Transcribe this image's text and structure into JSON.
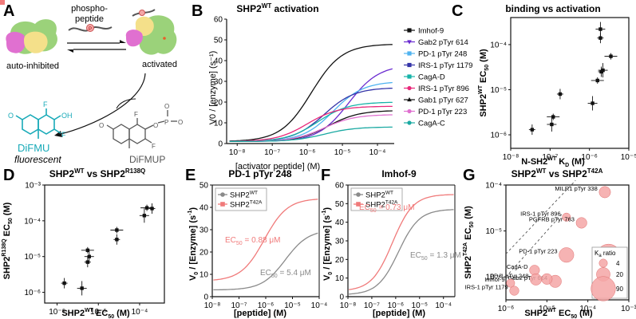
{
  "colors": {
    "black": "#111111",
    "purple": "#6a2bd0",
    "skyblue": "#4fb3f0",
    "indigo": "#3535a8",
    "teal": "#16b3a8",
    "magenta": "#e8287a",
    "pink": "#e070d0",
    "cyan": "#1aa9a2",
    "grey": "#8a8a8a",
    "salmon": "#f07a7a",
    "bubble": "#f4a6a6",
    "green": "#9bd27a",
    "yellow": "#f4e08a",
    "difmu": "#18aab8"
  },
  "panel_A": {
    "letter": "A",
    "label_phospho_1": "phospho-",
    "label_phospho_2": "peptide",
    "label_autoinhibited": "auto-inhibited",
    "label_activated": "activated",
    "label_difmu": "DiFMU",
    "label_fluorescent": "fluorescent",
    "label_difmup": "DiFMUP",
    "p_marker": "P",
    "atom_F": "F",
    "atom_OH": "OH",
    "atom_O": "O",
    "atom_P": "P"
  },
  "chart_data": [
    {
      "panel": "B",
      "type": "line",
      "title": "SHP2",
      "title_sup": "WT",
      "title_rest": " activation",
      "xlabel": "[activator peptide] (M)",
      "ylabel": "V0 / [enzyme] (s⁻¹)",
      "xscale": "log",
      "xlim": [
        5e-09,
        0.0003
      ],
      "ylim": [
        0,
        60
      ],
      "yticks": [
        0,
        10,
        20,
        30,
        40,
        50,
        60
      ],
      "xticks": [
        "10⁻⁸",
        "10⁻⁷",
        "10⁻⁶",
        "10⁻⁵",
        "10⁻⁴"
      ],
      "series": [
        {
          "name": "Imhof-9",
          "color": "black",
          "marker": "square",
          "baseline": 1,
          "top": 48,
          "ec50": 1.3e-06
        },
        {
          "name": "Gab2 pTyr 614",
          "color": "purple",
          "marker": "tri-down",
          "baseline": 1,
          "top": 38,
          "ec50": 1.5e-05
        },
        {
          "name": "PD-1 pTyr 248",
          "color": "skyblue",
          "marker": "square",
          "baseline": 1,
          "top": 30,
          "ec50": 5.4e-06
        },
        {
          "name": "IRS-1 pTyr 1179",
          "color": "indigo",
          "marker": "square",
          "baseline": 1,
          "top": 27,
          "ec50": 3e-06
        },
        {
          "name": "CagA-D",
          "color": "teal",
          "marker": "square",
          "baseline": 1,
          "top": 20,
          "ec50": 2e-06
        },
        {
          "name": "IRS-1 pTyr 896",
          "color": "magenta",
          "marker": "circle",
          "baseline": 1,
          "top": 18,
          "ec50": 1e-06
        },
        {
          "name": "Gab1 pTyr 627",
          "color": "black",
          "marker": "tri-up",
          "baseline": 1,
          "top": 16,
          "ec50": 4e-06
        },
        {
          "name": "PD-1 pTyr 223",
          "color": "pink",
          "marker": "circle",
          "baseline": 1,
          "top": 14,
          "ec50": 3e-06
        },
        {
          "name": "CagA-C",
          "color": "cyan",
          "marker": "circle",
          "baseline": 1,
          "top": 8,
          "ec50": 3e-06
        }
      ]
    },
    {
      "panel": "C",
      "type": "scatter",
      "title": "binding vs activation",
      "xlabel_pre": "N-SH2",
      "xlabel_sup": "WT",
      "xlabel_post": " K",
      "xlabel_sub": "D",
      "xlabel_unit": " (M)",
      "ylabel_pre": "SHP2",
      "ylabel_sup": "WT",
      "ylabel_post": " EC",
      "ylabel_sub": "50",
      "ylabel_unit": " (M)",
      "xlim_exp": [
        -8,
        -5
      ],
      "ylim_exp": [
        -6.3,
        -3.4
      ],
      "xticks": [
        "10⁻⁸",
        "10⁻⁷",
        "10⁻⁶",
        "10⁻⁵"
      ],
      "yticks": [
        "10⁻⁶",
        "10⁻⁵",
        "10⁻⁴"
      ],
      "points": [
        {
          "x": 3.5e-08,
          "y": 1.3e-06
        },
        {
          "x": 1.1e-07,
          "y": 1.7e-06
        },
        {
          "x": 1.2e-07,
          "y": 2.5e-06
        },
        {
          "x": 1.8e-07,
          "y": 8e-06
        },
        {
          "x": 1.2e-06,
          "y": 5e-06
        },
        {
          "x": 1.6e-06,
          "y": 1.6e-05
        },
        {
          "x": 2e-06,
          "y": 2.5e-05
        },
        {
          "x": 2.2e-06,
          "y": 2.7e-05
        },
        {
          "x": 3.5e-06,
          "y": 5.5e-05
        },
        {
          "x": 1.9e-06,
          "y": 0.00014
        },
        {
          "x": 1.9e-06,
          "y": 0.00022
        }
      ]
    },
    {
      "panel": "D",
      "type": "scatter",
      "title_pre": "SHP2",
      "title_sup1": "WT",
      "title_mid": " vs SHP2",
      "title_sup2": "R138Q",
      "xlabel_pre": "SHP2",
      "xlabel_sup": "WT",
      "xlabel_post": " EC",
      "xlabel_sub": "50",
      "xlabel_unit": " (M)",
      "ylabel_pre": "SHP2",
      "ylabel_sup": "R138Q",
      "ylabel_post": " EC",
      "ylabel_sub": "50",
      "ylabel_unit": " (M)",
      "xlim_exp": [
        -6.3,
        -3.4
      ],
      "ylim_exp": [
        -6.3,
        -3
      ],
      "xticks": [
        "10⁻⁶",
        "10⁻⁵",
        "10⁻⁴"
      ],
      "yticks": [
        "10⁻⁶",
        "10⁻⁵",
        "10⁻⁴",
        "10⁻³"
      ],
      "points": [
        {
          "x": 1.5e-06,
          "y": 1.8e-06
        },
        {
          "x": 4e-06,
          "y": 1.3e-06
        },
        {
          "x": 5.5e-06,
          "y": 1.5e-05
        },
        {
          "x": 5.5e-06,
          "y": 7e-06
        },
        {
          "x": 6e-06,
          "y": 1e-05
        },
        {
          "x": 2.8e-05,
          "y": 5.5e-05
        },
        {
          "x": 2.8e-05,
          "y": 3e-05
        },
        {
          "x": 0.00013,
          "y": 0.00014
        },
        {
          "x": 0.00015,
          "y": 0.00023
        },
        {
          "x": 0.0002,
          "y": 0.00022
        }
      ]
    },
    {
      "panel": "E",
      "type": "line",
      "title": "PD-1 pTyr 248",
      "xlabel": "[peptide] (M)",
      "ylabel_pre": "V",
      "ylabel_sub": "0",
      "ylabel_post": " / [Enzyme] (s",
      "ylabel_sup": "-1",
      "ylabel_close": ")",
      "xscale": "log",
      "xlim": [
        1e-08,
        0.0001
      ],
      "ylim": [
        0,
        50
      ],
      "yticks": [
        0,
        10,
        20,
        30,
        40,
        50
      ],
      "xticks": [
        "10⁻⁸",
        "10⁻⁷",
        "10⁻⁶",
        "10⁻⁵",
        "10⁻⁴"
      ],
      "legend": [
        {
          "name_pre": "SHP2",
          "name_sup": "WT",
          "color": "grey",
          "marker": "circle"
        },
        {
          "name_pre": "SHP2",
          "name_sup": "T42A",
          "color": "salmon",
          "marker": "square"
        }
      ],
      "series": [
        {
          "name": "SHP2 WT",
          "color": "grey",
          "marker": "circle",
          "baseline": 3,
          "top": 30,
          "ec50": 5.4e-06
        },
        {
          "name": "SHP2 T42A",
          "color": "salmon",
          "marker": "square",
          "baseline": 7,
          "top": 44,
          "ec50": 8.8e-07
        }
      ],
      "annotations": [
        {
          "pre": "EC",
          "sub": "50",
          "post": " = 0.88 μM",
          "color": "salmon"
        },
        {
          "pre": "EC",
          "sub": "50",
          "post": " = 5.4 μM",
          "color": "grey"
        }
      ]
    },
    {
      "panel": "F",
      "type": "line",
      "title": "Imhof-9",
      "xlabel": "[peptide] (M)",
      "ylabel_pre": "V",
      "ylabel_sub": "0",
      "ylabel_post": " / [Enzyme] (s",
      "ylabel_sup": "-1",
      "ylabel_close": ")",
      "xscale": "log",
      "xlim": [
        1e-08,
        0.0003
      ],
      "ylim": [
        0,
        60
      ],
      "yticks": [
        0,
        10,
        20,
        30,
        40,
        50,
        60
      ],
      "xticks": [
        "10⁻⁸",
        "10⁻⁷",
        "10⁻⁶",
        "10⁻⁵",
        "10⁻⁴"
      ],
      "legend": [
        {
          "name_pre": "SHP2",
          "name_sup": "WT",
          "color": "grey",
          "marker": "circle"
        },
        {
          "name_pre": "SHP2",
          "name_sup": "T42A",
          "color": "salmon",
          "marker": "square"
        }
      ],
      "series": [
        {
          "name": "SHP2 WT",
          "color": "grey",
          "marker": "circle",
          "baseline": 1,
          "top": 47,
          "ec50": 1.3e-06
        },
        {
          "name": "SHP2 T42A",
          "color": "salmon",
          "marker": "square",
          "baseline": 3,
          "top": 55,
          "ec50": 7.3e-07
        }
      ],
      "annotations": [
        {
          "pre": "EC",
          "sub": "50",
          "post": " = 0.73 μM",
          "color": "salmon"
        },
        {
          "pre": "EC",
          "sub": "50",
          "post": " = 1.3 μM",
          "color": "grey"
        }
      ]
    },
    {
      "panel": "G",
      "type": "scatter",
      "title_pre": "SHP2",
      "title_sup1": "WT",
      "title_mid": " vs SHP2",
      "title_sup2": "T42A",
      "xlabel_pre": "SHP2",
      "xlabel_sup": "WT",
      "xlabel_post": " EC",
      "xlabel_sub": "50",
      "xlabel_unit": " (M)",
      "ylabel_pre": "SHP2",
      "ylabel_sup": "T42A",
      "ylabel_post": " EC",
      "ylabel_sub": "50",
      "ylabel_unit": " (M)",
      "xlim_exp": [
        -6,
        -3
      ],
      "ylim_exp": [
        -6.5,
        -4
      ],
      "xticks": [
        "10⁻⁶",
        "10⁻⁵",
        "10⁻⁴",
        "10⁻³"
      ],
      "yticks": [
        "10⁻⁶",
        "10⁻⁵",
        "10⁻⁴"
      ],
      "legend_title_pre": "K",
      "legend_title_sub": "a",
      "legend_title_post": " ratio",
      "legend_sizes": [
        4,
        20,
        90
      ],
      "points": [
        {
          "label": "MILR1 pTyr 338",
          "x": 0.00026,
          "y": 7e-05,
          "ratio": 12
        },
        {
          "label": "IRS-1 pTyr 896",
          "x": 3e-05,
          "y": 2e-05,
          "ratio": 4
        },
        {
          "label": "PGFRB pTyr 763",
          "x": 7e-05,
          "y": 1.5e-05,
          "ratio": 10
        },
        {
          "label": "PD-1 pTyr 223",
          "x": 3e-05,
          "y": 3e-06,
          "ratio": 25
        },
        {
          "label": "CagA-D",
          "x": 5e-06,
          "y": 1.4e-06,
          "ratio": 8
        },
        {
          "label": "Gab2 pTyr 614",
          "x": 1.6e-05,
          "y": 8e-07,
          "ratio": 15
        },
        {
          "label": "Imhof-9",
          "x": 1.3e-06,
          "y": 7.3e-07,
          "ratio": 4
        },
        {
          "label": "PD-1 pTyr 248",
          "x": 5.4e-06,
          "y": 8.8e-07,
          "ratio": 12
        },
        {
          "label": "IRS-1 pTyr 1179",
          "x": 1.6e-06,
          "y": 5e-07,
          "ratio": 6
        },
        {
          "label": "",
          "x": 1e-05,
          "y": 9e-07,
          "ratio": 10
        },
        {
          "label": "",
          "x": 0.00032,
          "y": 2.8e-06,
          "ratio": 90
        }
      ]
    }
  ]
}
